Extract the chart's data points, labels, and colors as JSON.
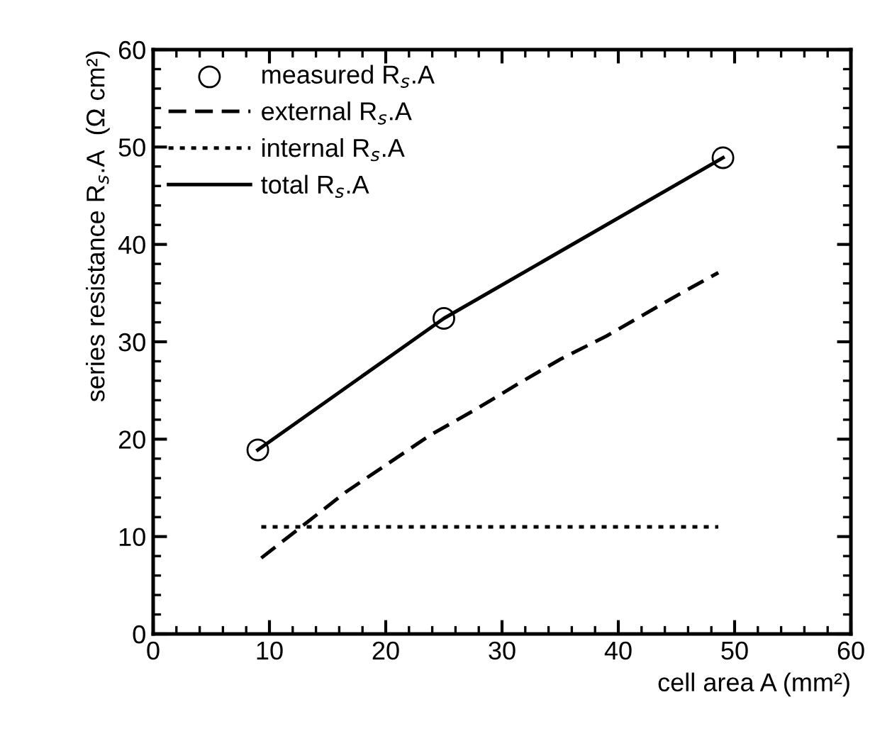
{
  "chart_data": {
    "type": "line",
    "xlabel": "cell area A (mm²)",
    "ylabel": "series resistance R$_{s}$.A  (Ω cm²)",
    "xlim": [
      0,
      60
    ],
    "xticks": [
      0,
      10,
      20,
      30,
      40,
      50,
      60
    ],
    "ylim": [
      0,
      60
    ],
    "yticks": [
      0,
      10,
      20,
      30,
      40,
      50,
      60
    ],
    "grid": false,
    "legend": "top left",
    "series": [
      {
        "name": "measured R$_{s}$.A",
        "type": "scatter",
        "marker": "circle",
        "color": "#000000",
        "x": [
          9,
          25,
          49
        ],
        "values": [
          18.9,
          32.4,
          48.9
        ]
      },
      {
        "name": "external R$_{s}$.A",
        "line_style": "dashed",
        "color": "#000000",
        "x": [
          9.3,
          16.6,
          20.2,
          23.8,
          27.8,
          31.4,
          35,
          39,
          42.2,
          45.4,
          48.6
        ],
        "values": [
          7.8,
          14.6,
          17.5,
          20.4,
          23.1,
          25.7,
          28.2,
          30.6,
          32.8,
          35,
          37.1
        ]
      },
      {
        "name": "internal R$_{s}$.A",
        "line_style": "dotted",
        "color": "#000000",
        "x": [
          9.3,
          48.6
        ],
        "values": [
          11,
          11
        ]
      },
      {
        "name": "total R$_{s}$.A",
        "line_style": "solid",
        "color": "#000000",
        "x": [
          9,
          25,
          49
        ],
        "values": [
          18.9,
          32.4,
          48.9
        ]
      }
    ]
  }
}
